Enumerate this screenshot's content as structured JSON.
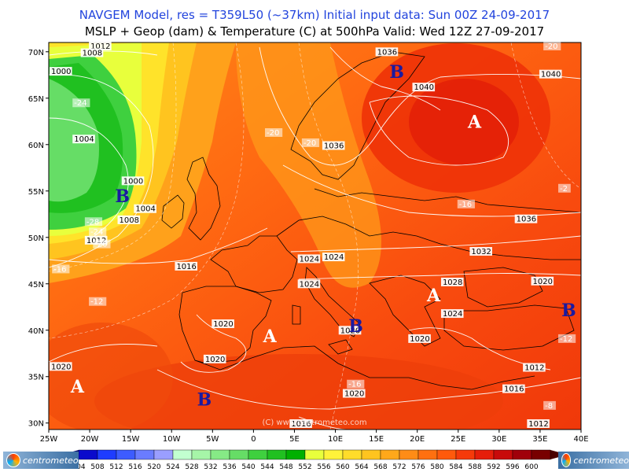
{
  "header": {
    "title_line1": "NAVGEM Model, res = T359L50 (~37km)     Initial input data: Sun 00Z 24-09-2017",
    "title_line2": "MSLP + Geop (dam) & Temperature (C) at 500hPa   Valid: Wed 12Z 27-09-2017"
  },
  "watermark": "(C) www.centrometeo.com",
  "logos": {
    "left": "centrometeo",
    "right": "centrometeo"
  },
  "map": {
    "x_ticks": [
      "25W",
      "20W",
      "15W",
      "10W",
      "5W",
      "0",
      "5E",
      "10E",
      "15E",
      "20E",
      "25E",
      "30E",
      "35E",
      "40E"
    ],
    "y_ticks": [
      "70N",
      "65N",
      "60N",
      "55N",
      "50N",
      "45N",
      "40N",
      "35N",
      "30N"
    ],
    "pressure_labels": [
      {
        "text": "1012",
        "lon": -20,
        "lat": 70.7
      },
      {
        "text": "1008",
        "lon": -21,
        "lat": 69.6
      },
      {
        "text": "1000",
        "lon": -25,
        "lat": 67.6
      },
      {
        "text": "1004",
        "lon": -22,
        "lat": 60.3
      },
      {
        "text": "1000",
        "lon": -16,
        "lat": 55.8
      },
      {
        "text": "1004",
        "lon": -14.5,
        "lat": 52.8
      },
      {
        "text": "1008",
        "lon": -16.5,
        "lat": 51.6
      },
      {
        "text": "1012",
        "lon": -20.5,
        "lat": 49.4
      },
      {
        "text": "1016",
        "lon": -9.5,
        "lat": 46.6
      },
      {
        "text": "1036",
        "lon": 15,
        "lat": 69.7
      },
      {
        "text": "1040",
        "lon": 19.5,
        "lat": 65.9
      },
      {
        "text": "1040",
        "lon": 35,
        "lat": 67.3
      },
      {
        "text": "1036",
        "lon": 8.5,
        "lat": 59.6
      },
      {
        "text": "1036",
        "lon": 32,
        "lat": 51.7
      },
      {
        "text": "1032",
        "lon": 26.5,
        "lat": 48.2
      },
      {
        "text": "1028",
        "lon": 23,
        "lat": 44.9
      },
      {
        "text": "1024",
        "lon": 5.5,
        "lat": 47.4
      },
      {
        "text": "1024",
        "lon": 8.5,
        "lat": 47.6
      },
      {
        "text": "1024",
        "lon": 5.5,
        "lat": 44.7
      },
      {
        "text": "1024",
        "lon": 23,
        "lat": 41.5
      },
      {
        "text": "1020",
        "lon": 34,
        "lat": 45
      },
      {
        "text": "1020",
        "lon": -5,
        "lat": 40.4
      },
      {
        "text": "1020",
        "lon": -6,
        "lat": 36.6
      },
      {
        "text": "1020",
        "lon": 10.5,
        "lat": 39.7
      },
      {
        "text": "1020",
        "lon": 19,
        "lat": 38.8
      },
      {
        "text": "1020",
        "lon": -25,
        "lat": 35.8
      },
      {
        "text": "1020",
        "lon": 11,
        "lat": 32.9
      },
      {
        "text": "1016",
        "lon": 30.5,
        "lat": 33.4
      },
      {
        "text": "1012",
        "lon": 33,
        "lat": 35.7
      },
      {
        "text": "1012",
        "lon": 33.5,
        "lat": 29.5
      },
      {
        "text": "1016",
        "lon": 4.5,
        "lat": 29.3
      }
    ],
    "temperature_labels": [
      {
        "text": "-24",
        "lon": -22,
        "lat": 64.2
      },
      {
        "text": "-20",
        "lon": 1.5,
        "lat": 61
      },
      {
        "text": "-20",
        "lon": 6,
        "lat": 59.9
      },
      {
        "text": "-28",
        "lon": -20.5,
        "lat": 51.4
      },
      {
        "text": "-24",
        "lon": -20,
        "lat": 50.3
      },
      {
        "text": "-20",
        "lon": -19.5,
        "lat": 49
      },
      {
        "text": "-16",
        "lon": -24.5,
        "lat": 46.3
      },
      {
        "text": "-16",
        "lon": 25,
        "lat": 53.3
      },
      {
        "text": "-12",
        "lon": -20,
        "lat": 42.8
      },
      {
        "text": "-16",
        "lon": 11.5,
        "lat": 33.9
      },
      {
        "text": "-12",
        "lon": 40,
        "lat": 38.8
      },
      {
        "text": "-8",
        "lon": 35.5,
        "lat": 31.6
      },
      {
        "text": "-20",
        "lon": 35.5,
        "lat": 70.6
      },
      {
        "text": "-2",
        "lon": 41,
        "lat": 55
      }
    ],
    "highs": [
      {
        "text": "A",
        "lon": 27,
        "lat": 61.8
      },
      {
        "text": "A",
        "lon": 22,
        "lat": 43.1
      },
      {
        "text": "A",
        "lon": 2,
        "lat": 38.7
      },
      {
        "text": "A",
        "lon": -21.5,
        "lat": 33.3
      }
    ],
    "lows": [
      {
        "text": "B",
        "lon": 17.5,
        "lat": 67.2
      },
      {
        "text": "B",
        "lon": -16,
        "lat": 53.8
      },
      {
        "text": "B",
        "lon": 12.5,
        "lat": 39.8
      },
      {
        "text": "B",
        "lon": 38.5,
        "lat": 41.5
      },
      {
        "text": "B",
        "lon": -6,
        "lat": 31.9
      }
    ]
  },
  "colorbar": {
    "values": [
      "504",
      "508",
      "512",
      "516",
      "520",
      "524",
      "528",
      "532",
      "536",
      "540",
      "544",
      "548",
      "552",
      "556",
      "560",
      "564",
      "568",
      "572",
      "576",
      "580",
      "584",
      "588",
      "592",
      "596",
      "600"
    ],
    "colors": [
      "#0a0acc",
      "#1e3cff",
      "#3d5cff",
      "#6a7cff",
      "#9a9eff",
      "#c2ffd0",
      "#a6f5a8",
      "#86ea86",
      "#66dd66",
      "#3fd03f",
      "#20c020",
      "#00b000",
      "#e8ff3c",
      "#fff23a",
      "#ffdc2a",
      "#ffc41f",
      "#ffa81a",
      "#ff8c16",
      "#ff7010",
      "#ff5a0c",
      "#f63a0a",
      "#e61e0a",
      "#c80a0a",
      "#a0000a",
      "#780000"
    ]
  }
}
